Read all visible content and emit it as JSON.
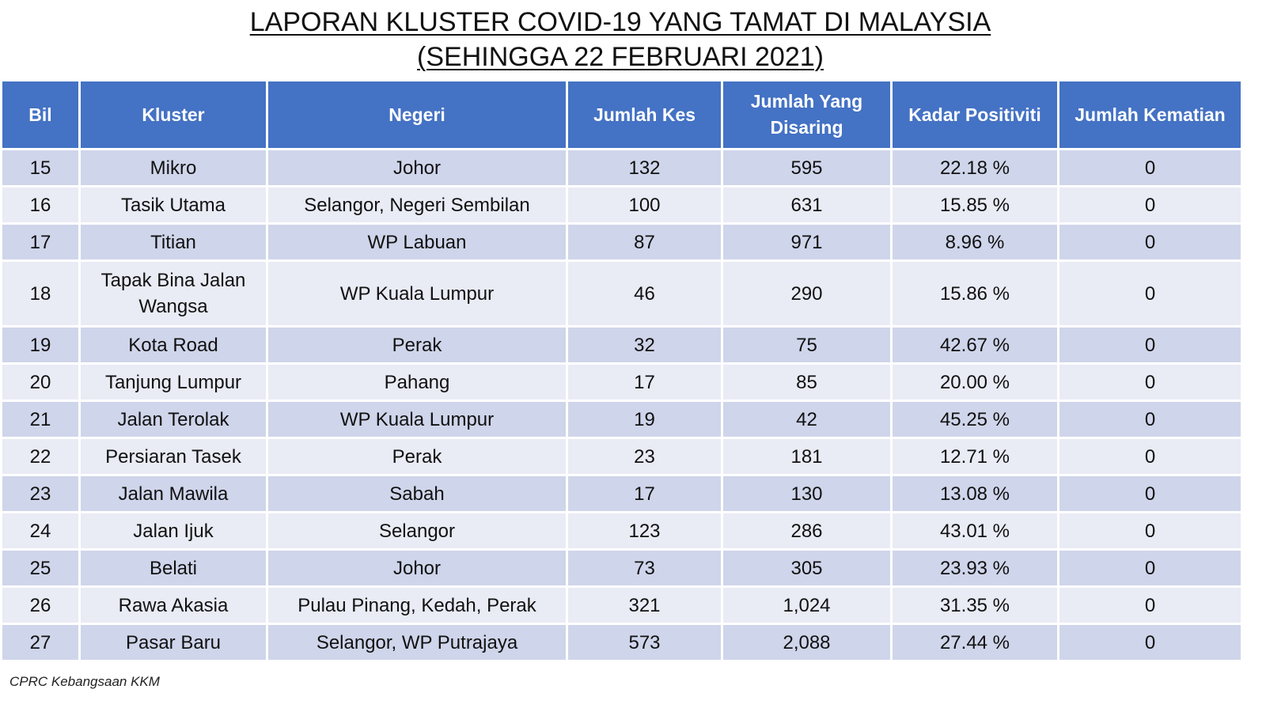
{
  "title": {
    "line1": "LAPORAN KLUSTER COVID-19 YANG TAMAT DI MALAYSIA",
    "line2": "(SEHINGGA  22 FEBRUARI 2021)"
  },
  "colors": {
    "header_bg": "#4472c4",
    "row_odd_bg": "#cfd5ea",
    "row_even_bg": "#e9ebf5"
  },
  "table": {
    "headers": [
      "Bil",
      "Kluster",
      "Negeri",
      "Jumlah Kes",
      "Jumlah Yang Disaring",
      "Kadar Positiviti",
      "Jumlah Kematian"
    ],
    "rows": [
      [
        "15",
        "Mikro",
        "Johor",
        "132",
        "595",
        "22.18 %",
        "0"
      ],
      [
        "16",
        "Tasik Utama",
        "Selangor, Negeri Sembilan",
        "100",
        "631",
        "15.85 %",
        "0"
      ],
      [
        "17",
        "Titian",
        "WP Labuan",
        "87",
        "971",
        "8.96 %",
        "0"
      ],
      [
        "18",
        "Tapak Bina Jalan Wangsa",
        "WP Kuala Lumpur",
        "46",
        "290",
        "15.86 %",
        "0"
      ],
      [
        "19",
        "Kota Road",
        "Perak",
        "32",
        "75",
        "42.67 %",
        "0"
      ],
      [
        "20",
        "Tanjung Lumpur",
        "Pahang",
        "17",
        "85",
        "20.00 %",
        "0"
      ],
      [
        "21",
        "Jalan Terolak",
        "WP Kuala Lumpur",
        "19",
        "42",
        "45.25 %",
        "0"
      ],
      [
        "22",
        "Persiaran Tasek",
        "Perak",
        "23",
        "181",
        "12.71 %",
        "0"
      ],
      [
        "23",
        "Jalan Mawila",
        "Sabah",
        "17",
        "130",
        "13.08 %",
        "0"
      ],
      [
        "24",
        "Jalan Ijuk",
        "Selangor",
        "123",
        "286",
        "43.01 %",
        "0"
      ],
      [
        "25",
        "Belati",
        "Johor",
        "73",
        "305",
        "23.93 %",
        "0"
      ],
      [
        "26",
        "Rawa Akasia",
        "Pulau Pinang, Kedah, Perak",
        "321",
        "1,024",
        "31.35 %",
        "0"
      ],
      [
        "27",
        "Pasar Baru",
        "Selangor, WP Putrajaya",
        "573",
        "2,088",
        "27.44 %",
        "0"
      ]
    ]
  },
  "footer": "CPRC Kebangsaan KKM"
}
